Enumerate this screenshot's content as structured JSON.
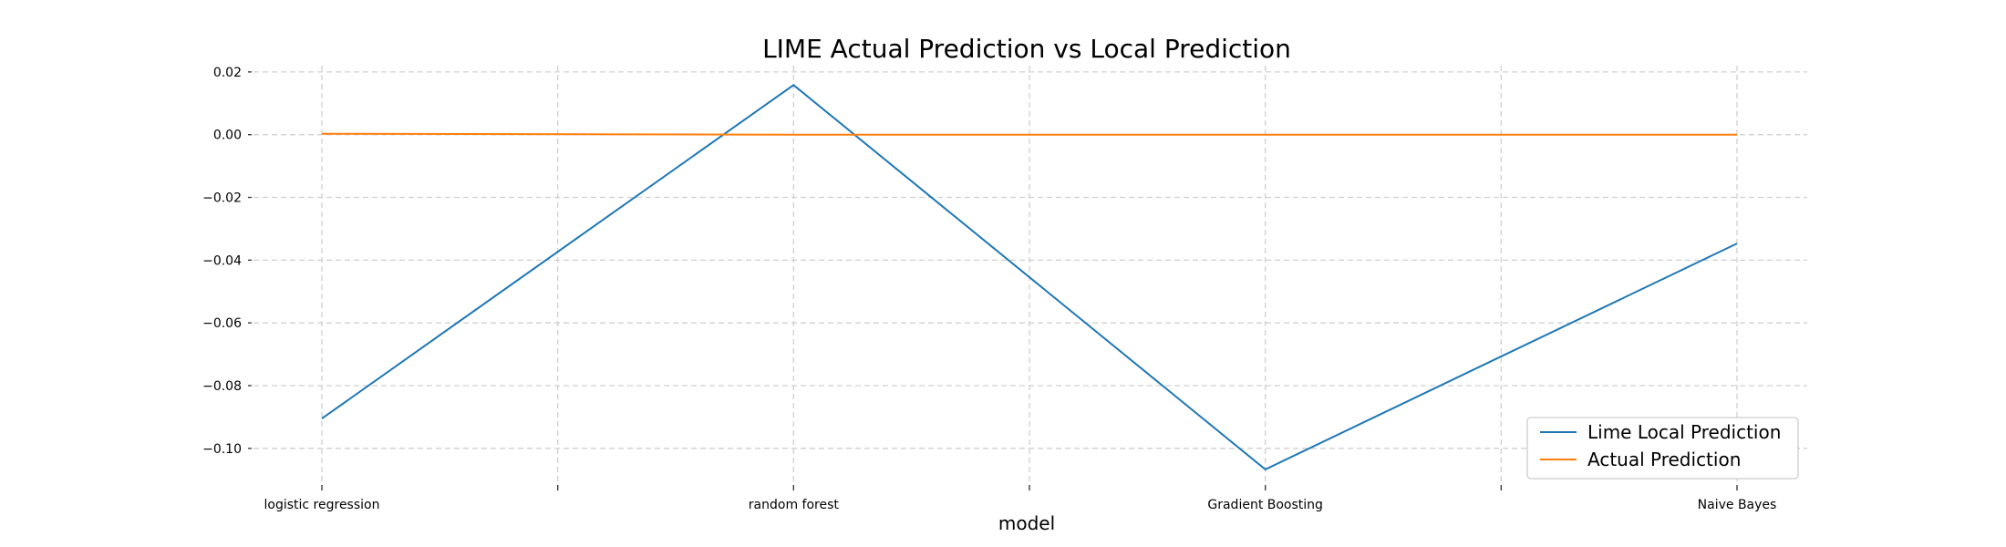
{
  "chart_data": {
    "type": "line",
    "title": "LIME Actual Prediction vs Local Prediction",
    "xlabel": "model",
    "ylabel": "",
    "categories": [
      "logistic regression",
      "random forest",
      "Gradient Boosting",
      "Naive Bayes"
    ],
    "ylim": [
      -0.114,
      0.022
    ],
    "yticks": [
      0.02,
      0.0,
      -0.02,
      -0.04,
      -0.06,
      -0.08,
      -0.1
    ],
    "ytick_labels": [
      "0.02",
      "0.00",
      "−0.02",
      "−0.04",
      "−0.06",
      "−0.08",
      "−0.10"
    ],
    "grid": true,
    "legend": "lower-right",
    "series": [
      {
        "name": "Lime Local Prediction",
        "color": "#1f77b4",
        "values": [
          -0.0905,
          0.0158,
          -0.1067,
          -0.0347
        ]
      },
      {
        "name": "Actual Prediction",
        "color": "#ff7f0e",
        "values": [
          0.0003,
          0.0,
          0.0,
          0.0
        ]
      }
    ]
  }
}
